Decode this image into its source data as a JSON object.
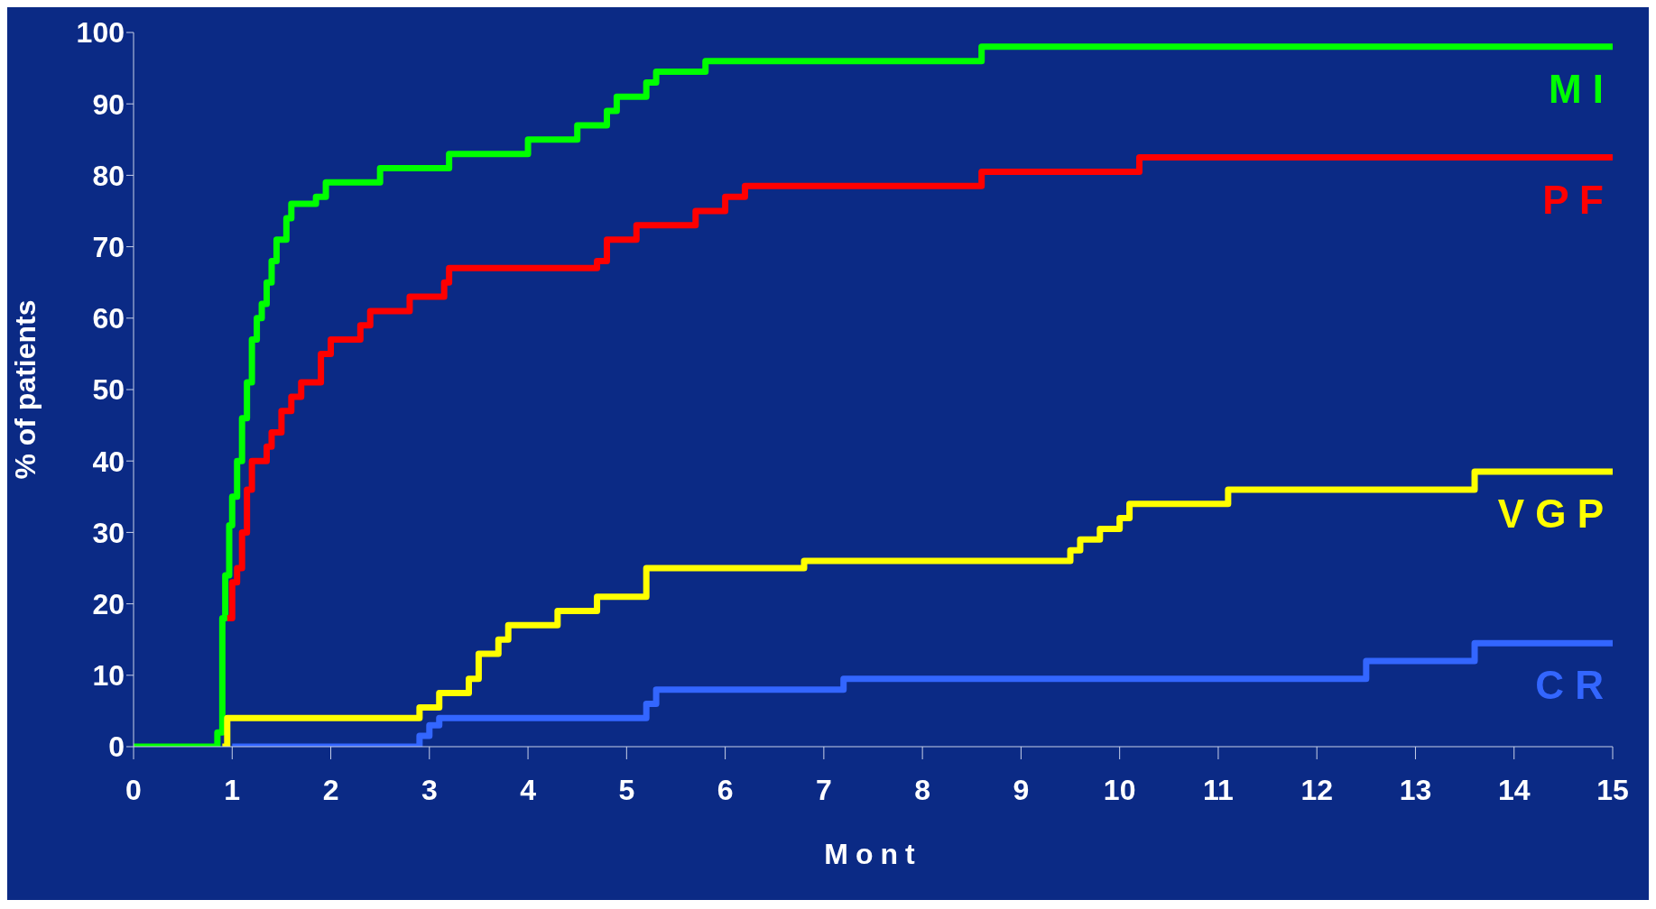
{
  "chart_data": {
    "type": "step",
    "xlabel": "Mont",
    "ylabel": "% of patients",
    "xlim": [
      0,
      15
    ],
    "xticks": [
      0,
      1,
      2,
      3,
      4,
      5,
      6,
      7,
      8,
      9,
      10,
      11,
      12,
      13,
      14,
      15
    ],
    "ylim": [
      0,
      100
    ],
    "yticks": [
      0,
      10,
      20,
      30,
      40,
      50,
      60,
      70,
      80,
      90,
      100
    ],
    "grid": false,
    "legend": false,
    "marker": "none",
    "line_style": "solid",
    "series": [
      {
        "name": "M I",
        "color": "#00ff00",
        "x": [
          0,
          0.8,
          0.85,
          0.9,
          0.93,
          0.97,
          1.0,
          1.05,
          1.1,
          1.15,
          1.2,
          1.25,
          1.3,
          1.35,
          1.4,
          1.45,
          1.55,
          1.6,
          1.85,
          1.95,
          2.5,
          3.2,
          4.0,
          4.5,
          4.8,
          4.9,
          5.2,
          5.3,
          5.8,
          8.6,
          15
        ],
        "values": [
          0,
          0,
          2,
          18,
          24,
          31,
          35,
          40,
          46,
          51,
          57,
          60,
          62,
          65,
          68,
          71,
          74,
          76,
          77,
          79,
          81,
          83,
          85,
          87,
          89,
          91,
          93,
          94.5,
          96,
          98,
          98
        ]
      },
      {
        "name": "P F",
        "color": "#ff0000",
        "x": [
          0.95,
          1.0,
          1.05,
          1.1,
          1.15,
          1.2,
          1.35,
          1.4,
          1.5,
          1.6,
          1.7,
          1.9,
          2.0,
          2.3,
          2.4,
          2.8,
          3.15,
          3.2,
          4.7,
          4.8,
          5.1,
          5.7,
          6.0,
          6.2,
          8.6,
          10.2,
          15
        ],
        "values": [
          18,
          23,
          25,
          30,
          36,
          40,
          42,
          44,
          47,
          49,
          51,
          55,
          57,
          59,
          61,
          63,
          65,
          67,
          68,
          71,
          73,
          75,
          77,
          78.5,
          80.5,
          82.5,
          82.5
        ]
      },
      {
        "name": "V G P",
        "color": "#ffff00",
        "x": [
          0.9,
          0.95,
          2.9,
          3.1,
          3.4,
          3.5,
          3.7,
          3.8,
          4.3,
          4.7,
          5.2,
          6.8,
          9.5,
          9.6,
          9.8,
          10.0,
          10.1,
          11.1,
          13.6,
          15
        ],
        "values": [
          0,
          4,
          5.5,
          7.5,
          9.5,
          13,
          15,
          17,
          19,
          21,
          25,
          26,
          27.5,
          29,
          30.5,
          32,
          34,
          36,
          38.5,
          38.5
        ]
      },
      {
        "name": "C R",
        "color": "#3366ff",
        "x": [
          1.0,
          2.9,
          3.0,
          3.1,
          5.2,
          5.3,
          7.2,
          12.5,
          13.6,
          15
        ],
        "values": [
          0,
          1.5,
          3,
          4,
          6,
          8,
          9.5,
          12,
          14.5,
          14.5
        ]
      }
    ]
  }
}
